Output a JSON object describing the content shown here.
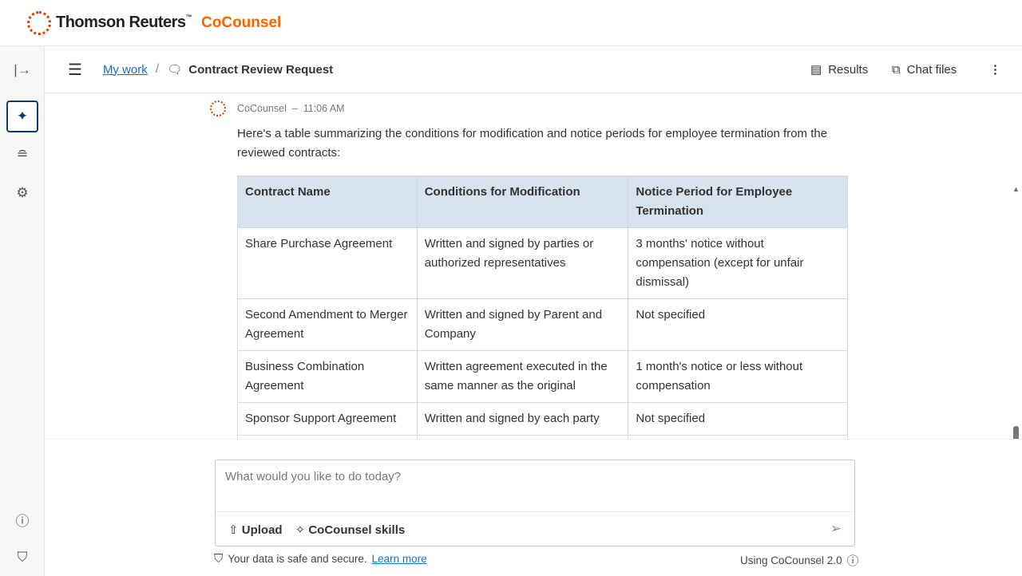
{
  "brand": {
    "name": "Thomson Reuters",
    "tm": "™",
    "product": "CoCounsel"
  },
  "rail": {
    "icons": [
      "expand-icon",
      "skills-sparkle-icon",
      "database-icon",
      "settings-gear-icon",
      "help-icon",
      "shield-icon"
    ]
  },
  "toolbar": {
    "breadcrumb_link": "My work",
    "separator": "/",
    "title": "Contract Review Request",
    "results": "Results",
    "chat_files": "Chat files"
  },
  "message": {
    "sender": "CoCounsel",
    "dash": "–",
    "time": "11:06 AM",
    "text": "Here's a table summarizing the conditions for modification and notice periods for employee termination from the reviewed contracts:"
  },
  "table": {
    "headers": [
      "Contract Name",
      "Conditions for Modification",
      "Notice Period for Employee Termination"
    ],
    "rows": [
      [
        "Share Purchase Agreement",
        "Written and signed by parties or authorized representatives",
        "3 months' notice without compensation (except for unfair dismissal)"
      ],
      [
        "Second Amendment to Merger Agreement",
        "Written and signed by Parent and Company",
        "Not specified"
      ],
      [
        "Business Combination Agreement",
        "Written agreement executed in the same manner as the original",
        "1 month's notice or less without compensation"
      ],
      [
        "Sponsor Support Agreement",
        "Written and signed by each party",
        "Not specified"
      ],
      [
        "",
        "",
        ""
      ]
    ]
  },
  "composer": {
    "placeholder": "What would you like to do today?",
    "upload": "Upload",
    "skills": "CoCounsel skills"
  },
  "footer": {
    "secure": "Your data is safe and secure.",
    "learn_more": "Learn more",
    "version": "Using CoCounsel 2.0"
  },
  "colors": {
    "accent": "#fa6400",
    "link": "#1a6fc4",
    "table_header": "#d6e2ec",
    "active_rail": "#123b6d"
  }
}
